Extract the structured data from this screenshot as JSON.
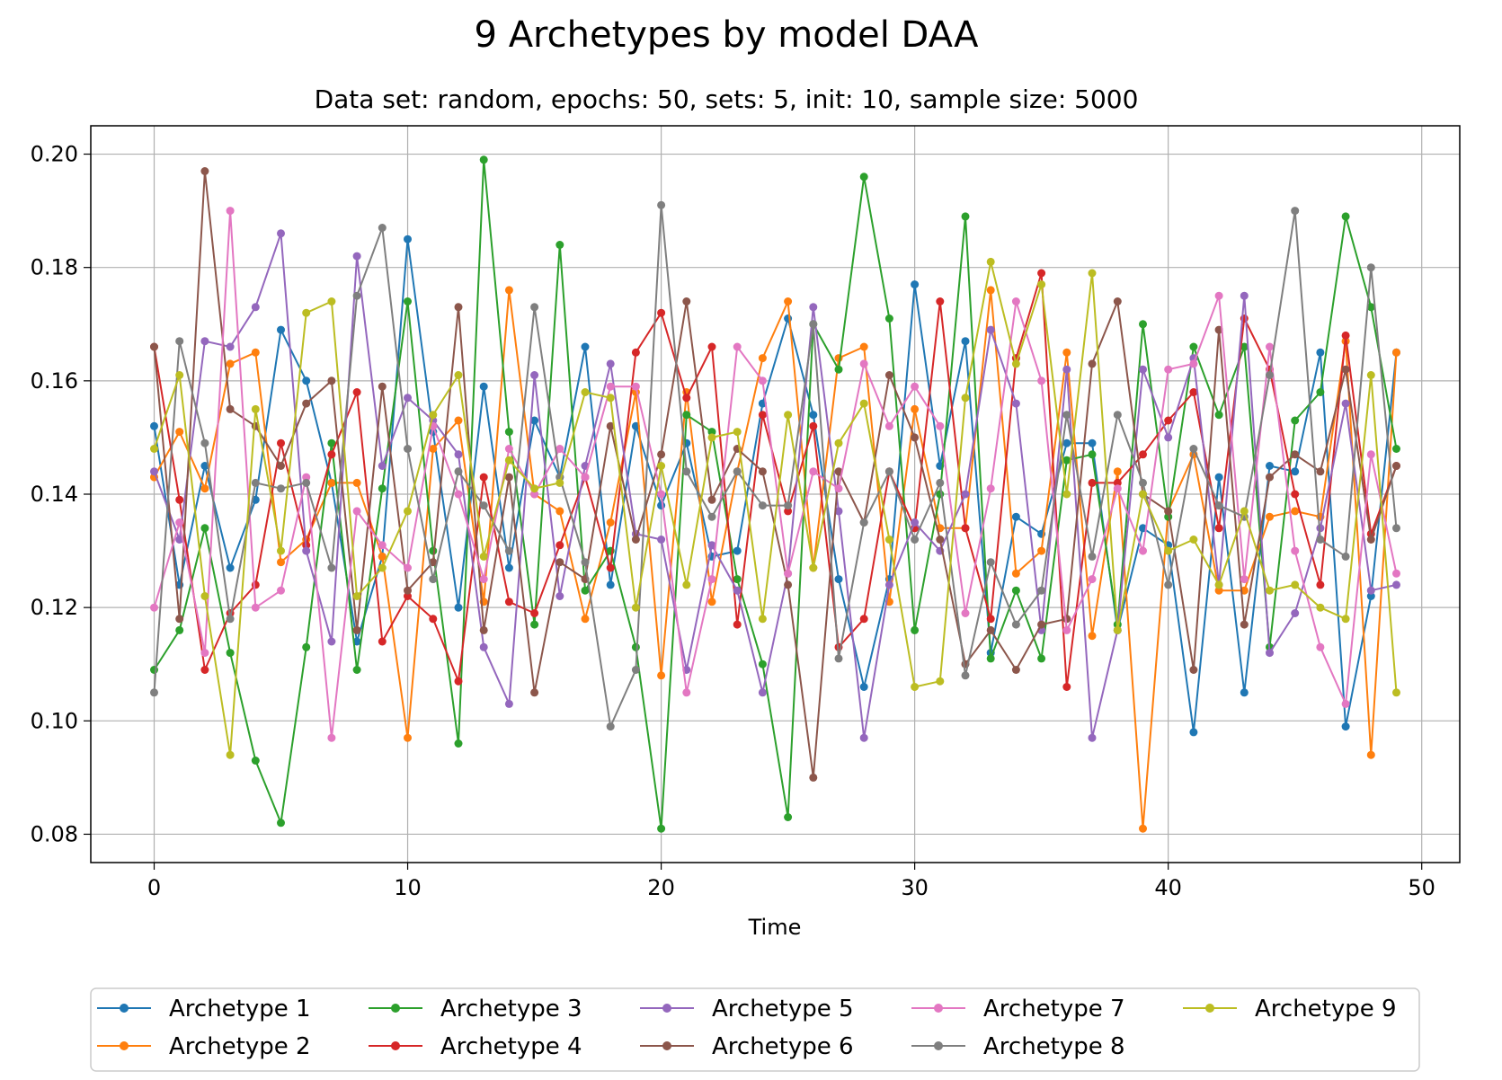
{
  "chart_data": {
    "type": "line",
    "title": "9 Archetypes by model DAA",
    "subtitle": "Data set: random, epochs: 50, sets: 5, init: 10, sample size: 5000",
    "xlabel": "Time",
    "ylabel": "",
    "xlim": [
      -2.5,
      51.5
    ],
    "ylim": [
      0.075,
      0.205
    ],
    "xticks": [
      0,
      10,
      20,
      30,
      40,
      50
    ],
    "yticks": [
      0.08,
      0.1,
      0.12,
      0.14,
      0.16,
      0.18,
      0.2
    ],
    "xtick_labels": [
      "0",
      "10",
      "20",
      "30",
      "40",
      "50"
    ],
    "ytick_labels": [
      "0.08",
      "0.10",
      "0.12",
      "0.14",
      "0.16",
      "0.18",
      "0.20"
    ],
    "grid": true,
    "legend_position": "bottom-center",
    "x": [
      0,
      1,
      2,
      3,
      4,
      5,
      6,
      7,
      8,
      9,
      10,
      11,
      12,
      13,
      14,
      15,
      16,
      17,
      18,
      19,
      20,
      21,
      22,
      23,
      24,
      25,
      26,
      27,
      28,
      29,
      30,
      31,
      32,
      33,
      34,
      35,
      36,
      37,
      38,
      39,
      40,
      41,
      42,
      43,
      44,
      45,
      46,
      47,
      48,
      49
    ],
    "series": [
      {
        "name": "Archetype 1",
        "color": "#1f77b4",
        "values": [
          0.152,
          0.124,
          0.145,
          0.127,
          0.139,
          0.169,
          0.16,
          0.142,
          0.114,
          0.129,
          0.185,
          0.151,
          0.12,
          0.159,
          0.127,
          0.153,
          0.143,
          0.166,
          0.124,
          0.152,
          0.138,
          0.149,
          0.129,
          0.13,
          0.156,
          0.171,
          0.154,
          0.125,
          0.106,
          0.125,
          0.177,
          0.145,
          0.167,
          0.112,
          0.136,
          0.133,
          0.149,
          0.149,
          0.116,
          0.134,
          0.131,
          0.098,
          0.143,
          0.105,
          0.145,
          0.144,
          0.165,
          0.099,
          0.122,
          0.165
        ]
      },
      {
        "name": "Archetype 2",
        "color": "#ff7f0e",
        "values": [
          0.143,
          0.151,
          0.141,
          0.163,
          0.165,
          0.128,
          0.132,
          0.142,
          0.142,
          0.129,
          0.097,
          0.148,
          0.153,
          0.121,
          0.176,
          0.14,
          0.137,
          0.118,
          0.135,
          0.158,
          0.108,
          0.158,
          0.121,
          0.144,
          0.164,
          0.174,
          0.127,
          0.164,
          0.166,
          0.121,
          0.155,
          0.134,
          0.134,
          0.176,
          0.126,
          0.13,
          0.165,
          0.115,
          0.144,
          0.081,
          0.137,
          0.147,
          0.123,
          0.123,
          0.136,
          0.137,
          0.136,
          0.167,
          0.094,
          0.165
        ]
      },
      {
        "name": "Archetype 3",
        "color": "#2ca02c",
        "values": [
          0.109,
          0.116,
          0.134,
          0.112,
          0.093,
          0.082,
          0.113,
          0.149,
          0.109,
          0.141,
          0.174,
          0.13,
          0.096,
          0.199,
          0.151,
          0.117,
          0.184,
          0.123,
          0.13,
          0.113,
          0.081,
          0.154,
          0.151,
          0.125,
          0.11,
          0.083,
          0.17,
          0.162,
          0.196,
          0.171,
          0.116,
          0.14,
          0.189,
          0.111,
          0.123,
          0.111,
          0.146,
          0.147,
          0.117,
          0.17,
          0.136,
          0.166,
          0.154,
          0.166,
          0.113,
          0.153,
          0.158,
          0.189,
          0.173,
          0.148
        ]
      },
      {
        "name": "Archetype 4",
        "color": "#d62728",
        "values": [
          0.166,
          0.139,
          0.109,
          0.119,
          0.124,
          0.149,
          0.131,
          0.147,
          0.158,
          0.114,
          0.122,
          0.118,
          0.107,
          0.143,
          0.121,
          0.119,
          0.131,
          0.143,
          0.127,
          0.165,
          0.172,
          0.157,
          0.166,
          0.117,
          0.154,
          0.137,
          0.152,
          0.113,
          0.118,
          0.144,
          0.134,
          0.174,
          0.134,
          0.118,
          0.164,
          0.179,
          0.106,
          0.142,
          0.142,
          0.147,
          0.153,
          0.158,
          0.134,
          0.171,
          0.162,
          0.14,
          0.124,
          0.168,
          0.133,
          0.145
        ]
      },
      {
        "name": "Archetype 5",
        "color": "#9467bd",
        "values": [
          0.144,
          0.132,
          0.167,
          0.166,
          0.173,
          0.186,
          0.13,
          0.114,
          0.182,
          0.145,
          0.157,
          0.153,
          0.147,
          0.113,
          0.103,
          0.161,
          0.122,
          0.145,
          0.163,
          0.133,
          0.132,
          0.109,
          0.131,
          0.123,
          0.105,
          0.126,
          0.173,
          0.137,
          0.097,
          0.124,
          0.135,
          0.13,
          0.14,
          0.169,
          0.156,
          0.116,
          0.162,
          0.097,
          0.116,
          0.162,
          0.15,
          0.164,
          0.124,
          0.175,
          0.112,
          0.119,
          0.134,
          0.156,
          0.123,
          0.124
        ]
      },
      {
        "name": "Archetype 6",
        "color": "#8c564b",
        "values": [
          0.166,
          0.118,
          0.197,
          0.155,
          0.152,
          0.145,
          0.156,
          0.16,
          0.116,
          0.159,
          0.123,
          0.128,
          0.173,
          0.116,
          0.143,
          0.105,
          0.128,
          0.125,
          0.152,
          0.132,
          0.147,
          0.174,
          0.139,
          0.148,
          0.144,
          0.124,
          0.09,
          0.144,
          0.135,
          0.161,
          0.15,
          0.132,
          0.11,
          0.116,
          0.109,
          0.117,
          0.118,
          0.163,
          0.174,
          0.14,
          0.137,
          0.109,
          0.169,
          0.117,
          0.143,
          0.147,
          0.144,
          0.162,
          0.132,
          0.145
        ]
      },
      {
        "name": "Archetype 7",
        "color": "#e377c2",
        "values": [
          0.12,
          0.135,
          0.112,
          0.19,
          0.12,
          0.123,
          0.143,
          0.097,
          0.137,
          0.131,
          0.127,
          0.152,
          0.14,
          0.125,
          0.148,
          0.14,
          0.148,
          0.143,
          0.159,
          0.159,
          0.14,
          0.105,
          0.125,
          0.166,
          0.16,
          0.126,
          0.144,
          0.141,
          0.163,
          0.152,
          0.159,
          0.152,
          0.119,
          0.141,
          0.174,
          0.16,
          0.116,
          0.125,
          0.141,
          0.13,
          0.162,
          0.163,
          0.175,
          0.125,
          0.166,
          0.13,
          0.113,
          0.103,
          0.147,
          0.126
        ]
      },
      {
        "name": "Archetype 8",
        "color": "#7f7f7f",
        "values": [
          0.105,
          0.167,
          0.149,
          0.118,
          0.142,
          0.141,
          0.142,
          0.127,
          0.175,
          0.187,
          0.148,
          0.125,
          0.144,
          0.138,
          0.13,
          0.173,
          0.143,
          0.128,
          0.099,
          0.109,
          0.191,
          0.144,
          0.136,
          0.144,
          0.138,
          0.138,
          0.17,
          0.111,
          0.135,
          0.144,
          0.132,
          0.142,
          0.108,
          0.128,
          0.117,
          0.123,
          0.154,
          0.129,
          0.154,
          0.142,
          0.124,
          0.148,
          0.138,
          0.136,
          0.161,
          0.19,
          0.132,
          0.129,
          0.18,
          0.134
        ]
      },
      {
        "name": "Archetype 9",
        "color": "#bcbd22",
        "values": [
          0.148,
          0.161,
          0.122,
          0.094,
          0.155,
          0.13,
          0.172,
          0.174,
          0.122,
          0.127,
          0.137,
          0.154,
          0.161,
          0.129,
          0.146,
          0.141,
          0.142,
          0.158,
          0.157,
          0.12,
          0.145,
          0.124,
          0.15,
          0.151,
          0.118,
          0.154,
          0.127,
          0.149,
          0.156,
          0.132,
          0.106,
          0.107,
          0.157,
          0.181,
          0.163,
          0.177,
          0.14,
          0.179,
          0.116,
          0.14,
          0.13,
          0.132,
          0.124,
          0.137,
          0.123,
          0.124,
          0.12,
          0.118,
          0.161,
          0.105
        ]
      }
    ]
  }
}
